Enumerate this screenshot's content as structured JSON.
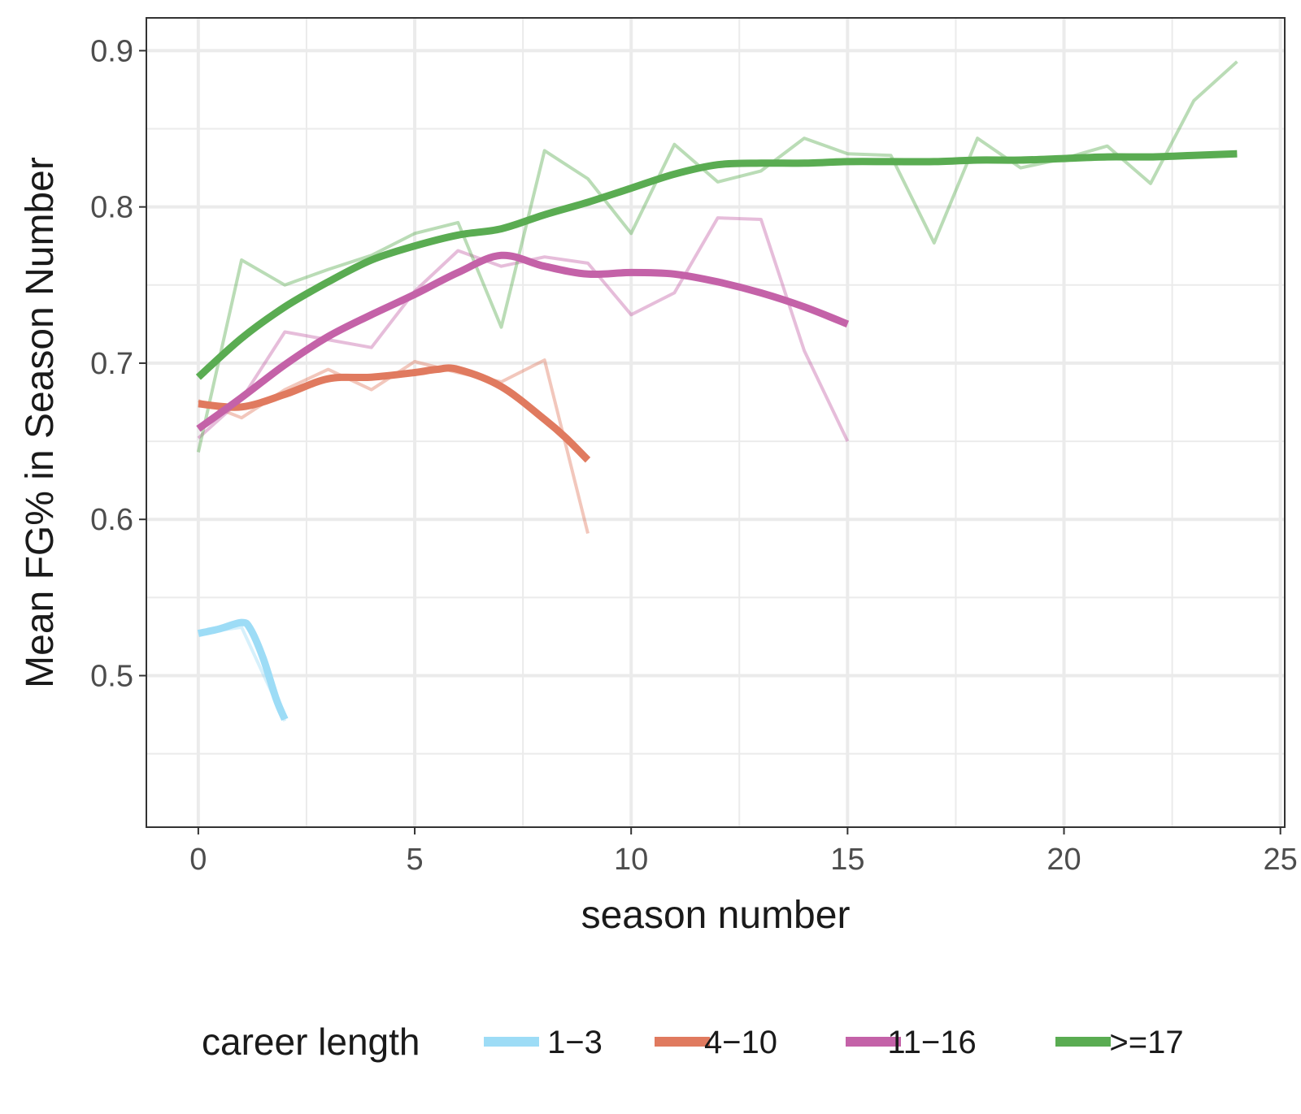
{
  "chart_data": {
    "type": "line",
    "xlabel": "season number",
    "ylabel": "Mean FG% in Season Number",
    "xlim": [
      -1.2,
      25.1
    ],
    "ylim": [
      0.403,
      0.921
    ],
    "x_ticks": [
      0,
      5,
      10,
      15,
      20,
      25
    ],
    "x_tick_labels": [
      "0",
      "5",
      "10",
      "15",
      "20",
      "25"
    ],
    "y_ticks": [
      0.5,
      0.6,
      0.7,
      0.8,
      0.9
    ],
    "y_tick_labels": [
      "0.5",
      "0.6",
      "0.7",
      "0.8",
      "0.9"
    ],
    "grid": true,
    "legend": {
      "title": "career length",
      "position": "bottom"
    },
    "series": [
      {
        "name": "1−3",
        "color": "#9ddcf6",
        "raw": {
          "x": [
            0,
            1,
            2
          ],
          "y": [
            0.527,
            0.531,
            0.471
          ]
        },
        "smooth": {
          "x": [
            0,
            0.5,
            1,
            1.2,
            1.5,
            1.8,
            2
          ],
          "y": [
            0.527,
            0.53,
            0.534,
            0.53,
            0.511,
            0.485,
            0.472
          ]
        }
      },
      {
        "name": "4−10",
        "color": "#e07a5f",
        "raw": {
          "x": [
            0,
            1,
            2,
            3,
            4,
            5,
            6,
            7,
            8,
            9
          ],
          "y": [
            0.676,
            0.665,
            0.683,
            0.696,
            0.683,
            0.701,
            0.694,
            0.688,
            0.702,
            0.591
          ]
        },
        "smooth": {
          "x": [
            0,
            1,
            2,
            3,
            4,
            5,
            5.5,
            6,
            7,
            8,
            8.5,
            9
          ],
          "y": [
            0.674,
            0.672,
            0.68,
            0.69,
            0.691,
            0.694,
            0.696,
            0.696,
            0.685,
            0.664,
            0.652,
            0.638
          ]
        }
      },
      {
        "name": "11−16",
        "color": "#c462a8",
        "raw": {
          "x": [
            0,
            1,
            2,
            3,
            4,
            5,
            6,
            7,
            8,
            9,
            10,
            11,
            12,
            13,
            14,
            15
          ],
          "y": [
            0.652,
            0.677,
            0.72,
            0.715,
            0.71,
            0.746,
            0.772,
            0.762,
            0.768,
            0.764,
            0.731,
            0.745,
            0.793,
            0.792,
            0.708,
            0.65
          ]
        },
        "smooth": {
          "x": [
            0,
            1,
            2,
            3,
            4,
            5,
            6,
            7,
            8,
            9,
            10,
            11,
            12,
            13,
            14,
            15
          ],
          "y": [
            0.658,
            0.678,
            0.699,
            0.717,
            0.731,
            0.744,
            0.758,
            0.769,
            0.762,
            0.757,
            0.758,
            0.757,
            0.752,
            0.745,
            0.736,
            0.725
          ]
        }
      },
      {
        "name": ">=17",
        "color": "#5aac52",
        "raw": {
          "x": [
            0,
            1,
            2,
            3,
            4,
            5,
            6,
            7,
            8,
            9,
            10,
            11,
            12,
            13,
            14,
            15,
            16,
            17,
            18,
            19,
            20,
            21,
            22,
            23,
            24
          ],
          "y": [
            0.643,
            0.766,
            0.75,
            0.76,
            0.769,
            0.783,
            0.79,
            0.723,
            0.836,
            0.818,
            0.783,
            0.84,
            0.816,
            0.823,
            0.844,
            0.834,
            0.833,
            0.777,
            0.844,
            0.825,
            0.831,
            0.839,
            0.815,
            0.868,
            0.893
          ]
        },
        "smooth": {
          "x": [
            0,
            1,
            2,
            3,
            4,
            5,
            6,
            7,
            8,
            9,
            10,
            11,
            12,
            13,
            14,
            15,
            16,
            17,
            18,
            19,
            20,
            21,
            22,
            23,
            24
          ],
          "y": [
            0.691,
            0.716,
            0.736,
            0.752,
            0.766,
            0.775,
            0.782,
            0.786,
            0.795,
            0.803,
            0.812,
            0.821,
            0.827,
            0.828,
            0.828,
            0.829,
            0.829,
            0.829,
            0.83,
            0.83,
            0.831,
            0.832,
            0.832,
            0.833,
            0.834
          ]
        }
      }
    ]
  }
}
